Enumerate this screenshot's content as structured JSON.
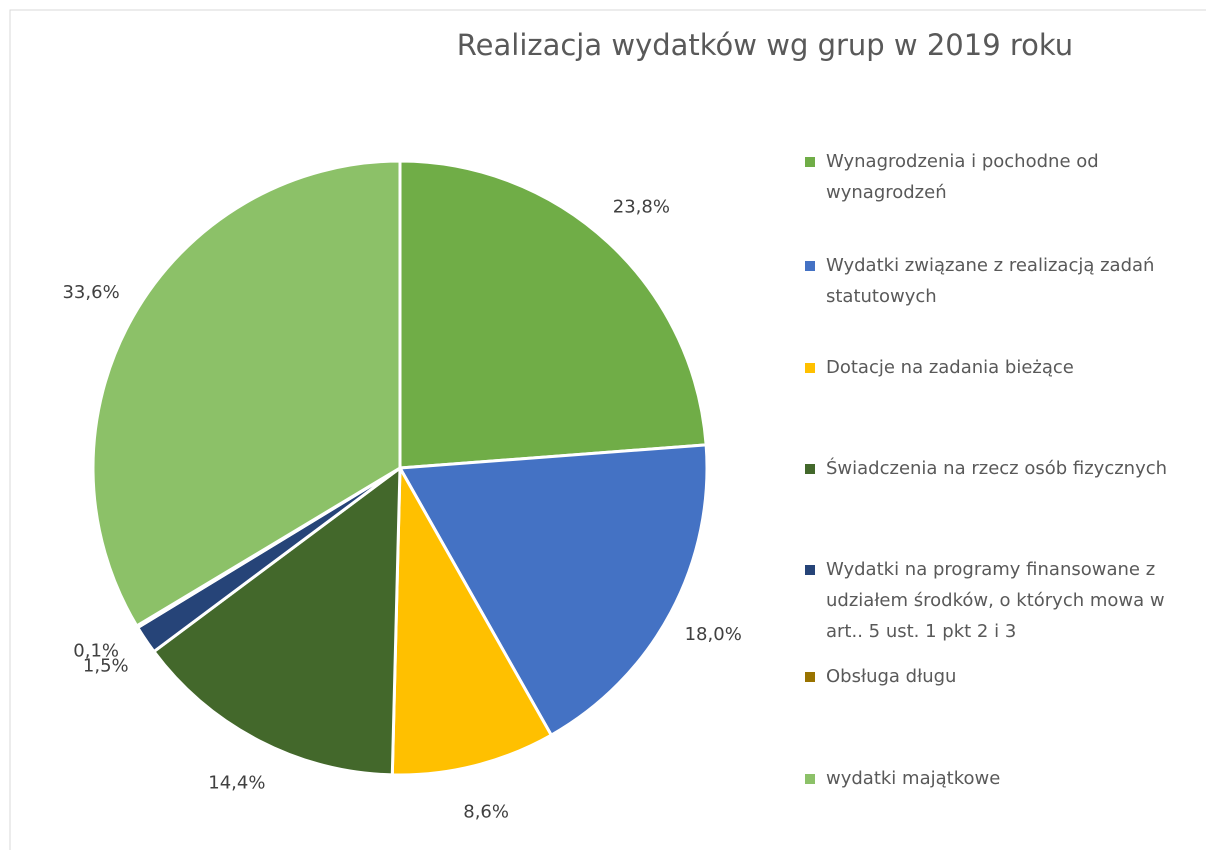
{
  "chart_data": {
    "type": "pie",
    "title": "Realizacja wydatków wg grup w 2019 roku",
    "categories": [
      "Wynagrodzenia i pochodne od wynagrodzeń",
      "Wydatki związane z realizacją zadań statutowych",
      "Dotacje na zadania bieżące",
      "Świadczenia na rzecz osób fizycznych",
      "Wydatki na programy finansowane z udziałem środków, o których mowa w art.. 5 ust. 1 pkt 2 i 3",
      "Obsługa długu",
      "wydatki majątkowe"
    ],
    "values": [
      23.8,
      18.0,
      8.6,
      14.4,
      1.5,
      0.1,
      33.6
    ],
    "value_labels": [
      "23,8%",
      "18,0%",
      "8,6%",
      "14,4%",
      "1,5%",
      "0,1%",
      "33,6%"
    ],
    "colors": [
      "#70ad47",
      "#4472c4",
      "#ffc000",
      "#43682b",
      "#264478",
      "#997300",
      "#8cc168"
    ],
    "legend": "right"
  }
}
